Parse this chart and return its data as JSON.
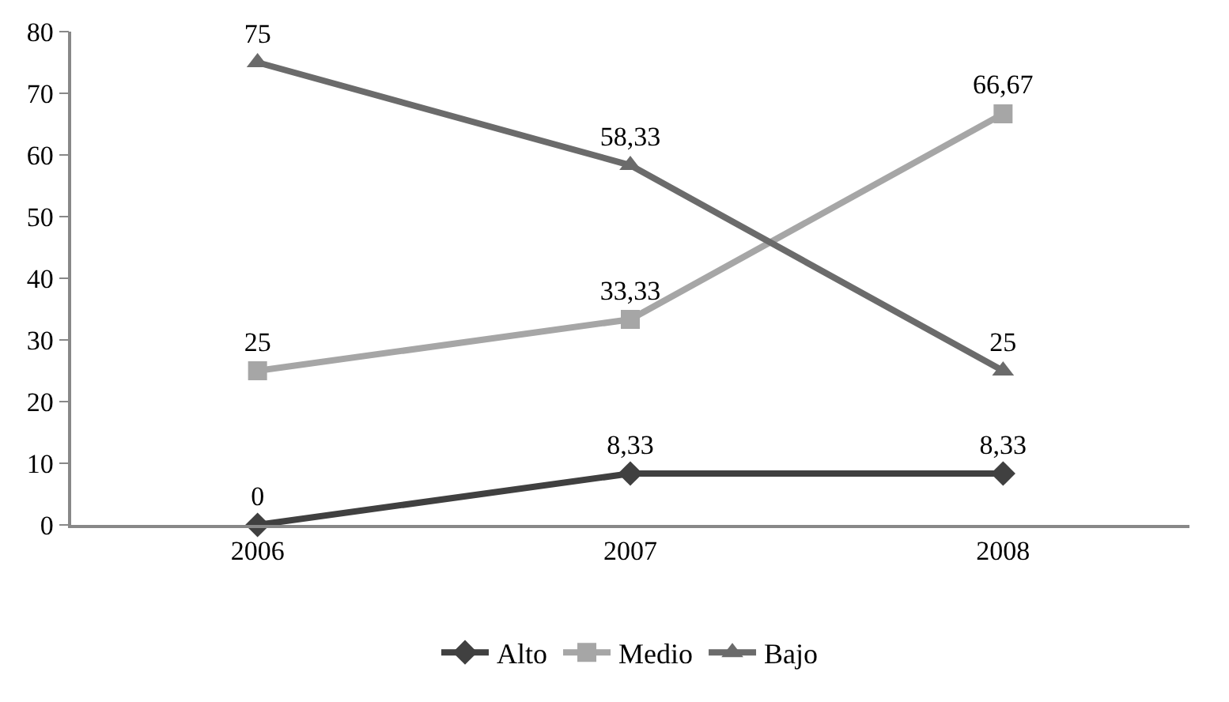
{
  "chart_data": {
    "type": "line",
    "categories": [
      "2006",
      "2007",
      "2008"
    ],
    "ylim": [
      0,
      80
    ],
    "yticks": [
      0,
      10,
      20,
      30,
      40,
      50,
      60,
      70,
      80
    ],
    "legend": "bottom",
    "series": [
      {
        "name": "Alto",
        "color": "#404040",
        "marker": "diamond",
        "values": [
          0,
          8.33,
          8.33
        ],
        "value_labels": [
          "0",
          "8,33",
          "8,33"
        ]
      },
      {
        "name": "Medio",
        "color": "#a6a6a6",
        "marker": "square",
        "values": [
          25,
          33.33,
          66.67
        ],
        "value_labels": [
          "25",
          "33,33",
          "66,67"
        ]
      },
      {
        "name": "Bajo",
        "color": "#6b6b6b",
        "marker": "triangle",
        "values": [
          75,
          58.33,
          25
        ],
        "value_labels": [
          "75",
          "58,33",
          "25"
        ]
      }
    ]
  }
}
